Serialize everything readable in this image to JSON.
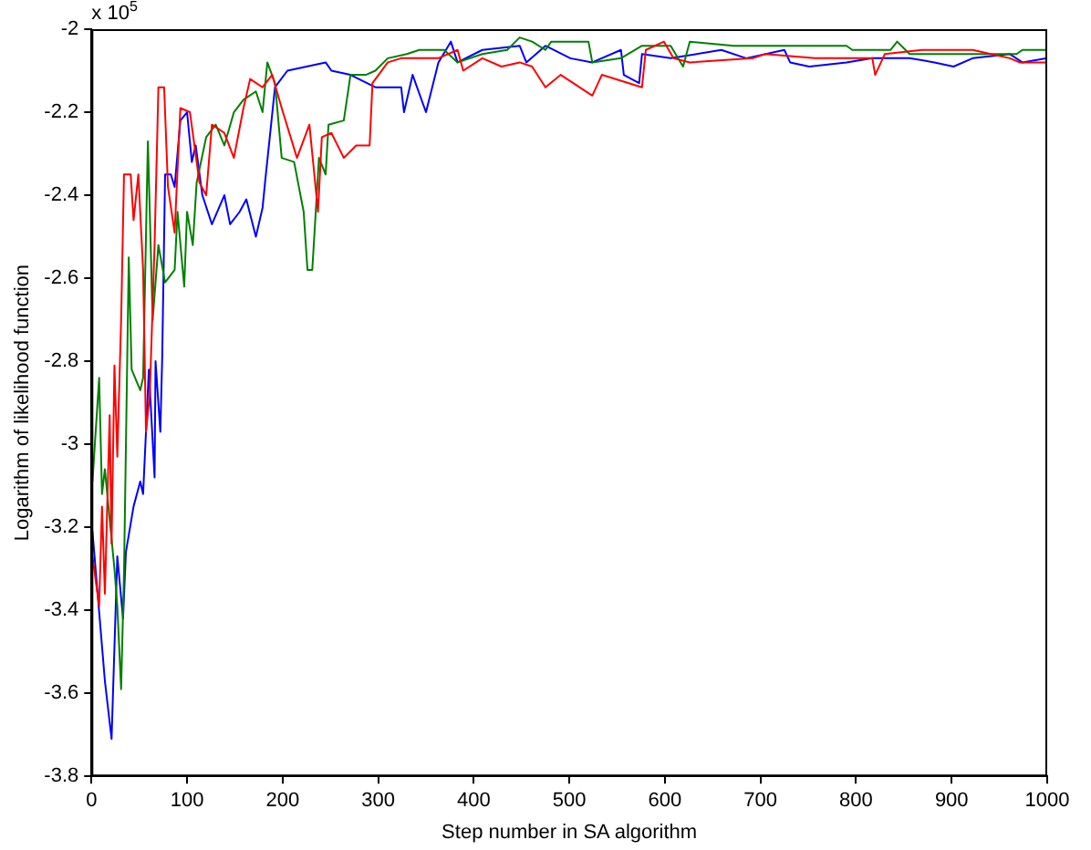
{
  "chart_data": {
    "type": "line",
    "xlabel": "Step number in SA algorithm",
    "ylabel": "Logarithm of likelihood function",
    "annotations": [
      "x 10$^{5}$"
    ],
    "xlim": [
      0,
      1000
    ],
    "xticks": [
      0,
      100,
      200,
      300,
      400,
      500,
      600,
      700,
      800,
      900,
      1000
    ],
    "ylim": [
      -3.8,
      -2
    ],
    "yticks": [
      -3.8,
      -3.6,
      -3.4,
      -3.2,
      -3,
      -2.8,
      -2.6,
      -2.4,
      -2.2,
      -2
    ],
    "grid": false,
    "legend": false,
    "marker": "none",
    "line_style": "solid",
    "series": [
      {
        "color": "#ff0000",
        "x": [
          1,
          8,
          11,
          14,
          19,
          21,
          24,
          27,
          31,
          34,
          41,
          44,
          49,
          54,
          57,
          61,
          66,
          70,
          76,
          80,
          87,
          93,
          103,
          113,
          120,
          126,
          139,
          149,
          159,
          166,
          179,
          189,
          199,
          215,
          228,
          237,
          241,
          251,
          264,
          277,
          291,
          294,
          310,
          324,
          363,
          383,
          389,
          409,
          429,
          448,
          461,
          475,
          491,
          524,
          534,
          576,
          580,
          599,
          609,
          626,
          692,
          705,
          757,
          817,
          820,
          830,
          869,
          922,
          961,
          971,
          1000
        ],
        "values": [
          -3.27,
          -3.39,
          -3.15,
          -3.36,
          -2.93,
          -3.24,
          -2.81,
          -3.03,
          -2.7,
          -2.35,
          -2.35,
          -2.46,
          -2.35,
          -2.58,
          -2.97,
          -2.88,
          -2.52,
          -2.14,
          -2.14,
          -2.38,
          -2.49,
          -2.19,
          -2.2,
          -2.37,
          -2.4,
          -2.23,
          -2.25,
          -2.31,
          -2.19,
          -2.12,
          -2.14,
          -2.11,
          -2.19,
          -2.31,
          -2.23,
          -2.44,
          -2.26,
          -2.25,
          -2.31,
          -2.28,
          -2.28,
          -2.13,
          -2.08,
          -2.07,
          -2.07,
          -2.05,
          -2.1,
          -2.07,
          -2.09,
          -2.08,
          -2.09,
          -2.14,
          -2.11,
          -2.16,
          -2.11,
          -2.14,
          -2.05,
          -2.03,
          -2.07,
          -2.08,
          -2.07,
          -2.06,
          -2.07,
          -2.07,
          -2.11,
          -2.06,
          -2.05,
          -2.05,
          -2.07,
          -2.08,
          -2.08
        ]
      },
      {
        "color": "#008000",
        "x": [
          1,
          8,
          11,
          14,
          24,
          27,
          31,
          34,
          39,
          42,
          51,
          54,
          59,
          64,
          70,
          77,
          87,
          90,
          97,
          100,
          106,
          110,
          120,
          130,
          139,
          149,
          159,
          172,
          179,
          184,
          192,
          199,
          212,
          222,
          226,
          231,
          238,
          245,
          248,
          264,
          271,
          287,
          297,
          310,
          330,
          343,
          369,
          383,
          409,
          435,
          448,
          461,
          475,
          481,
          520,
          524,
          554,
          576,
          606,
          619,
          626,
          672,
          705,
          744,
          790,
          796,
          836,
          843,
          856,
          909,
          968,
          974,
          1000
        ],
        "values": [
          -3.09,
          -2.84,
          -3.12,
          -3.06,
          -3.3,
          -3.39,
          -3.59,
          -3.31,
          -2.55,
          -2.82,
          -2.87,
          -2.84,
          -2.27,
          -2.7,
          -2.52,
          -2.61,
          -2.58,
          -2.44,
          -2.62,
          -2.44,
          -2.52,
          -2.37,
          -2.26,
          -2.23,
          -2.28,
          -2.2,
          -2.17,
          -2.15,
          -2.2,
          -2.08,
          -2.13,
          -2.31,
          -2.32,
          -2.44,
          -2.58,
          -2.58,
          -2.31,
          -2.35,
          -2.23,
          -2.22,
          -2.11,
          -2.11,
          -2.1,
          -2.07,
          -2.06,
          -2.05,
          -2.05,
          -2.08,
          -2.06,
          -2.05,
          -2.02,
          -2.03,
          -2.05,
          -2.03,
          -2.03,
          -2.08,
          -2.07,
          -2.04,
          -2.04,
          -2.09,
          -2.03,
          -2.04,
          -2.04,
          -2.04,
          -2.04,
          -2.05,
          -2.05,
          -2.03,
          -2.06,
          -2.06,
          -2.06,
          -2.05,
          -2.05
        ]
      },
      {
        "color": "#0000ff",
        "x": [
          1,
          14,
          21,
          27,
          33,
          36,
          44,
          51,
          54,
          60,
          66,
          67,
          72,
          74,
          77,
          83,
          87,
          93,
          100,
          105,
          109,
          116,
          126,
          139,
          145,
          155,
          162,
          172,
          179,
          182,
          192,
          205,
          245,
          251,
          271,
          297,
          324,
          327,
          336,
          350,
          363,
          376,
          383,
          409,
          448,
          455,
          475,
          501,
          524,
          554,
          557,
          573,
          576,
          606,
          659,
          685,
          725,
          731,
          751,
          790,
          817,
          856,
          882,
          902,
          922,
          961,
          974,
          1000
        ],
        "values": [
          -3.21,
          -3.57,
          -3.71,
          -3.27,
          -3.42,
          -3.26,
          -3.15,
          -3.09,
          -3.12,
          -2.82,
          -3.08,
          -2.8,
          -2.97,
          -2.79,
          -2.35,
          -2.35,
          -2.38,
          -2.22,
          -2.2,
          -2.32,
          -2.28,
          -2.4,
          -2.47,
          -2.4,
          -2.47,
          -2.44,
          -2.41,
          -2.5,
          -2.43,
          -2.36,
          -2.14,
          -2.1,
          -2.08,
          -2.1,
          -2.11,
          -2.14,
          -2.14,
          -2.2,
          -2.11,
          -2.2,
          -2.08,
          -2.03,
          -2.08,
          -2.05,
          -2.04,
          -2.08,
          -2.04,
          -2.07,
          -2.08,
          -2.05,
          -2.11,
          -2.13,
          -2.06,
          -2.07,
          -2.05,
          -2.07,
          -2.05,
          -2.08,
          -2.09,
          -2.08,
          -2.07,
          -2.07,
          -2.08,
          -2.09,
          -2.07,
          -2.06,
          -2.08,
          -2.07
        ]
      }
    ]
  }
}
